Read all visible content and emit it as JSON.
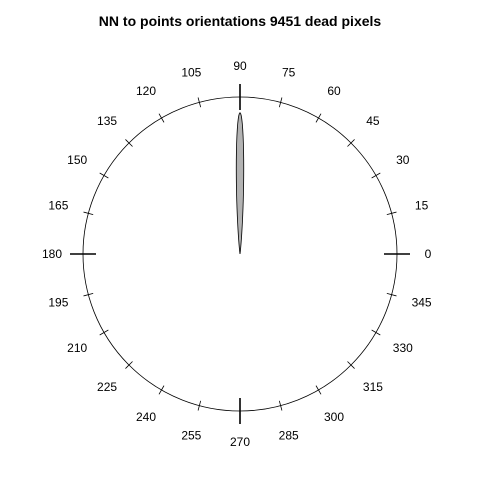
{
  "chart_data": {
    "type": "rose",
    "title": "NN to points orientations 9451 dead pixels",
    "angle_unit": "degrees",
    "angle_labels": [
      "0",
      "15",
      "30",
      "45",
      "60",
      "75",
      "90",
      "105",
      "120",
      "135",
      "150",
      "165",
      "180",
      "195",
      "210",
      "225",
      "240",
      "255",
      "270",
      "285",
      "300",
      "315",
      "330",
      "345"
    ],
    "angle_ticks": [
      0,
      15,
      30,
      45,
      60,
      75,
      90,
      105,
      120,
      135,
      150,
      165,
      180,
      195,
      210,
      225,
      240,
      255,
      270,
      285,
      300,
      315,
      330,
      345
    ],
    "density": {
      "peak_direction": 90,
      "peak_fraction_of_radius": 0.9,
      "half_width_degrees": 2.5
    },
    "fill_color": "#b3b3b3",
    "outline_color": "#000000"
  }
}
